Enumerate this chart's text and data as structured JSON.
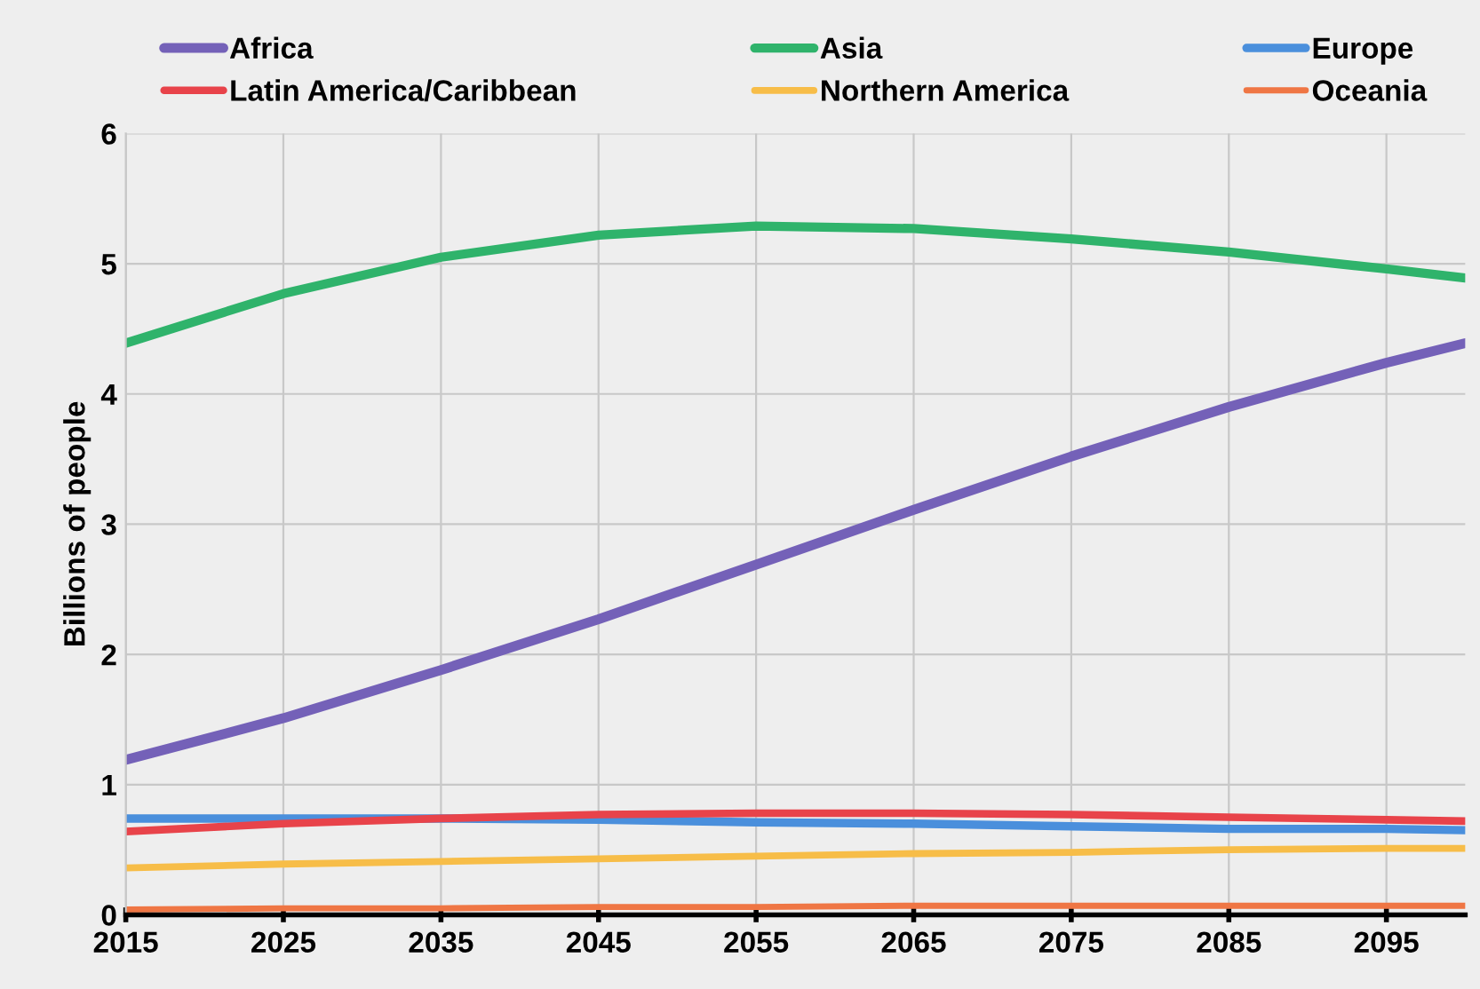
{
  "chart_data": {
    "type": "line",
    "ylabel": "Billions of people",
    "x": [
      2015,
      2025,
      2035,
      2045,
      2055,
      2065,
      2075,
      2085,
      2095,
      2100
    ],
    "series": [
      {
        "name": "Africa",
        "color": "#7461b8",
        "values": [
          1.19,
          1.51,
          1.88,
          2.27,
          2.69,
          3.11,
          3.52,
          3.9,
          4.24,
          4.39
        ]
      },
      {
        "name": "Asia",
        "color": "#2fb36b",
        "values": [
          4.39,
          4.77,
          5.05,
          5.22,
          5.29,
          5.27,
          5.19,
          5.09,
          4.96,
          4.89
        ]
      },
      {
        "name": "Europe",
        "color": "#4a8fdc",
        "values": [
          0.74,
          0.74,
          0.74,
          0.73,
          0.71,
          0.7,
          0.68,
          0.66,
          0.66,
          0.65
        ]
      },
      {
        "name": "Latin America/Caribbean",
        "color": "#e8434a",
        "values": [
          0.64,
          0.7,
          0.74,
          0.77,
          0.78,
          0.78,
          0.77,
          0.75,
          0.73,
          0.72
        ]
      },
      {
        "name": "Northern America",
        "color": "#f7bd48",
        "values": [
          0.36,
          0.39,
          0.41,
          0.43,
          0.45,
          0.47,
          0.48,
          0.5,
          0.51,
          0.51
        ]
      },
      {
        "name": "Oceania",
        "color": "#ef7644",
        "values": [
          0.04,
          0.05,
          0.05,
          0.06,
          0.06,
          0.07,
          0.07,
          0.07,
          0.07,
          0.07
        ]
      }
    ],
    "xlim": [
      2015,
      2100
    ],
    "xticks": [
      2015,
      2025,
      2035,
      2045,
      2055,
      2065,
      2075,
      2085,
      2095
    ],
    "ylim": [
      0,
      6
    ],
    "yticks": [
      0,
      1,
      2,
      3,
      4,
      5,
      6
    ],
    "grid": true,
    "legend": "top",
    "marker": "none",
    "line_style": "solid"
  }
}
